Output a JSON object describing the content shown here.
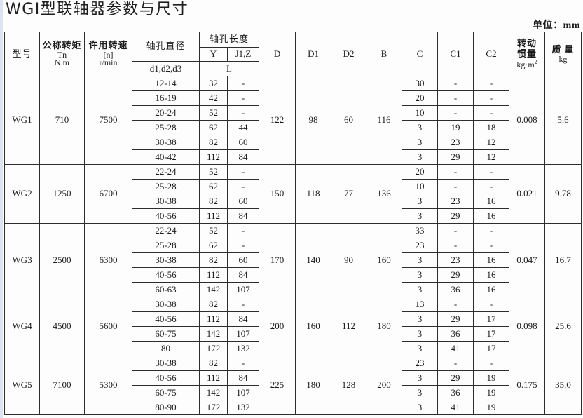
{
  "title": "WGⅠ型联轴器参数与尺寸",
  "unit_label": "单位：mm",
  "header": {
    "model": "型号",
    "torque_title": "公称转矩",
    "torque_sub1": "Tn",
    "torque_sub2": "N.m",
    "speed_title": "许用转速",
    "speed_sub1": "[n]",
    "speed_sub2": "r/min",
    "bore_dia_title": "轴孔直径",
    "bore_dia_sub": "d1,d2,d3",
    "bore_len_title": "轴孔长度",
    "bore_len_y": "Y",
    "bore_len_jz": "J1,Z",
    "bore_len_l": "L",
    "D": "D",
    "D1": "D1",
    "D2": "D2",
    "B": "B",
    "C": "C",
    "C1": "C1",
    "C2": "C2",
    "inertia_line1": "转动",
    "inertia_line2": "惯量",
    "inertia_unit_base": "kg·m",
    "inertia_unit_sup": "2",
    "mass_title": "质 量",
    "mass_unit": "kg"
  },
  "groups": [
    {
      "model": "WG1",
      "torque": "710",
      "speed": "7500",
      "D": "122",
      "D1": "98",
      "D2": "60",
      "B": "116",
      "inertia": "0.008",
      "mass": "5.6",
      "rows": [
        {
          "d": "12-14",
          "y": "32",
          "jz": "-",
          "c": "30",
          "c1": "-",
          "c2": "-"
        },
        {
          "d": "16-19",
          "y": "42",
          "jz": "-",
          "c": "20",
          "c1": "-",
          "c2": "-"
        },
        {
          "d": "20-24",
          "y": "52",
          "jz": "-",
          "c": "10",
          "c1": "-",
          "c2": "-"
        },
        {
          "d": "25-28",
          "y": "62",
          "jz": "44",
          "c": "3",
          "c1": "19",
          "c2": "18"
        },
        {
          "d": "30-38",
          "y": "82",
          "jz": "60",
          "c": "3",
          "c1": "23",
          "c2": "12"
        },
        {
          "d": "40-42",
          "y": "112",
          "jz": "84",
          "c": "3",
          "c1": "29",
          "c2": "12"
        }
      ]
    },
    {
      "model": "WG2",
      "torque": "1250",
      "speed": "6700",
      "D": "150",
      "D1": "118",
      "D2": "77",
      "B": "136",
      "inertia": "0.021",
      "mass": "9.78",
      "rows": [
        {
          "d": "22-24",
          "y": "52",
          "jz": "-",
          "c": "20",
          "c1": "-",
          "c2": "-"
        },
        {
          "d": "25-28",
          "y": "62",
          "jz": "-",
          "c": "10",
          "c1": "-",
          "c2": "-"
        },
        {
          "d": "30-38",
          "y": "82",
          "jz": "60",
          "c": "3",
          "c1": "23",
          "c2": "16"
        },
        {
          "d": "40-56",
          "y": "112",
          "jz": "84",
          "c": "3",
          "c1": "29",
          "c2": "16"
        }
      ]
    },
    {
      "model": "WG3",
      "torque": "2500",
      "speed": "6300",
      "D": "170",
      "D1": "140",
      "D2": "90",
      "B": "160",
      "inertia": "0.047",
      "mass": "16.7",
      "rows": [
        {
          "d": "22-24",
          "y": "52",
          "jz": "-",
          "c": "33",
          "c1": "-",
          "c2": "-"
        },
        {
          "d": "25-28",
          "y": "62",
          "jz": "-",
          "c": "23",
          "c1": "-",
          "c2": "-"
        },
        {
          "d": "30-38",
          "y": "82",
          "jz": "60",
          "c": "3",
          "c1": "23",
          "c2": "16"
        },
        {
          "d": "40-56",
          "y": "112",
          "jz": "84",
          "c": "3",
          "c1": "29",
          "c2": "16"
        },
        {
          "d": "60-63",
          "y": "142",
          "jz": "107",
          "c": "3",
          "c1": "36",
          "c2": "16"
        }
      ]
    },
    {
      "model": "WG4",
      "torque": "4500",
      "speed": "5600",
      "D": "200",
      "D1": "160",
      "D2": "112",
      "B": "180",
      "inertia": "0.098",
      "mass": "25.6",
      "rows": [
        {
          "d": "30-38",
          "y": "82",
          "jz": "-",
          "c": "13",
          "c1": "-",
          "c2": "-"
        },
        {
          "d": "40-56",
          "y": "112",
          "jz": "84",
          "c": "3",
          "c1": "29",
          "c2": "17"
        },
        {
          "d": "60-75",
          "y": "142",
          "jz": "107",
          "c": "3",
          "c1": "36",
          "c2": "17"
        },
        {
          "d": "80",
          "y": "172",
          "jz": "132",
          "c": "3",
          "c1": "41",
          "c2": "17"
        }
      ]
    },
    {
      "model": "WG5",
      "torque": "7100",
      "speed": "5300",
      "D": "225",
      "D1": "180",
      "D2": "128",
      "B": "200",
      "inertia": "0.175",
      "mass": "35.0",
      "rows": [
        {
          "d": "30-38",
          "y": "82",
          "jz": "-",
          "c": "23",
          "c1": "-",
          "c2": "-"
        },
        {
          "d": "40-56",
          "y": "112",
          "jz": "84",
          "c": "3",
          "c1": "29",
          "c2": "19"
        },
        {
          "d": "60-75",
          "y": "142",
          "jz": "107",
          "c": "3",
          "c1": "36",
          "c2": "19"
        },
        {
          "d": "80-90",
          "y": "172",
          "jz": "132",
          "c": "3",
          "c1": "41",
          "c2": "19"
        }
      ]
    }
  ]
}
